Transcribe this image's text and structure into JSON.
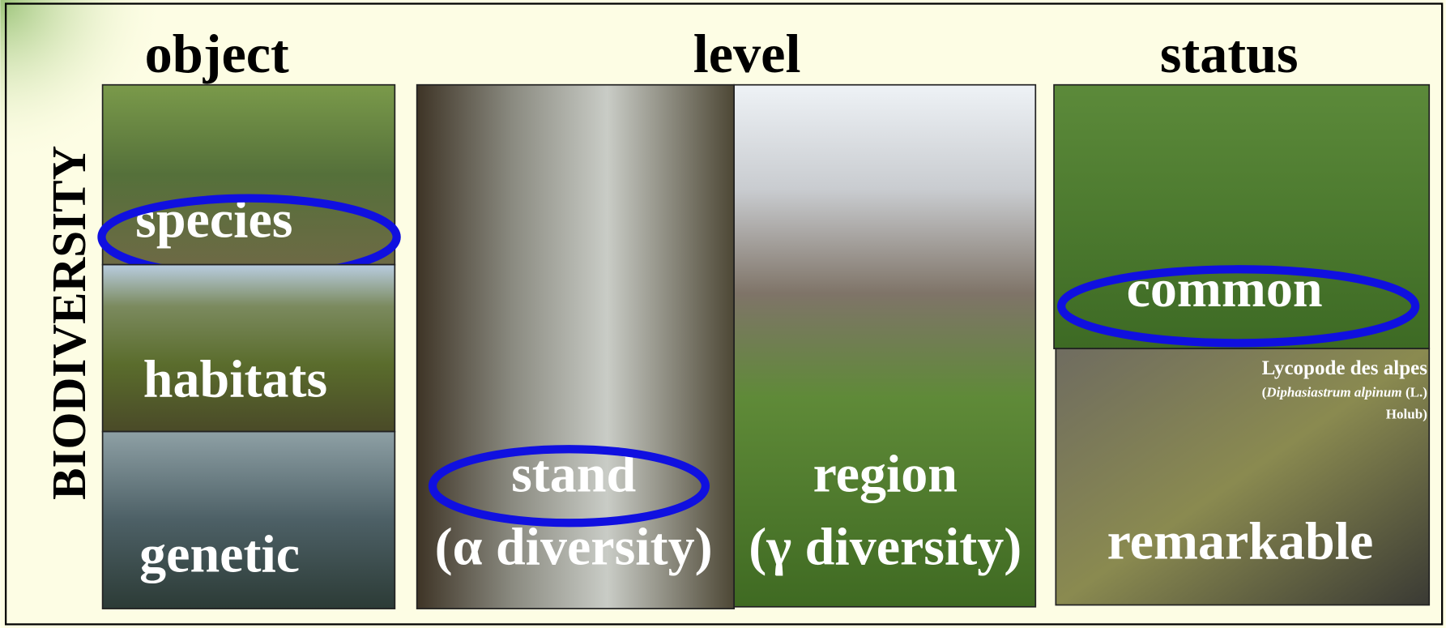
{
  "side_label": "BIODIVERSITY",
  "columns": [
    {
      "title": "object",
      "panels": [
        {
          "lines": [
            "species"
          ],
          "circled": true
        },
        {
          "lines": [
            "habitats"
          ],
          "circled": false
        },
        {
          "lines": [
            "genetic"
          ],
          "circled": false
        }
      ]
    },
    {
      "title": "level",
      "panels": [
        {
          "lines": [
            "stand",
            "(α diversity)"
          ],
          "circled": true
        },
        {
          "lines": [
            "region",
            "(γ diversity)"
          ],
          "circled": false
        }
      ]
    },
    {
      "title": "status",
      "panels": [
        {
          "lines": [
            "common"
          ],
          "circled": true
        },
        {
          "lines": [
            "remarkable"
          ],
          "circled": false,
          "caption": [
            [
              {
                "text": "Lycopode des alpes",
                "italic": false
              }
            ],
            [
              {
                "text": "(",
                "italic": false
              },
              {
                "text": "Diphasiastrum alpinum",
                "italic": true
              },
              {
                "text": " (L.)",
                "italic": false
              }
            ],
            [
              {
                "text": "Holub)",
                "italic": false
              }
            ]
          ]
        }
      ]
    }
  ]
}
